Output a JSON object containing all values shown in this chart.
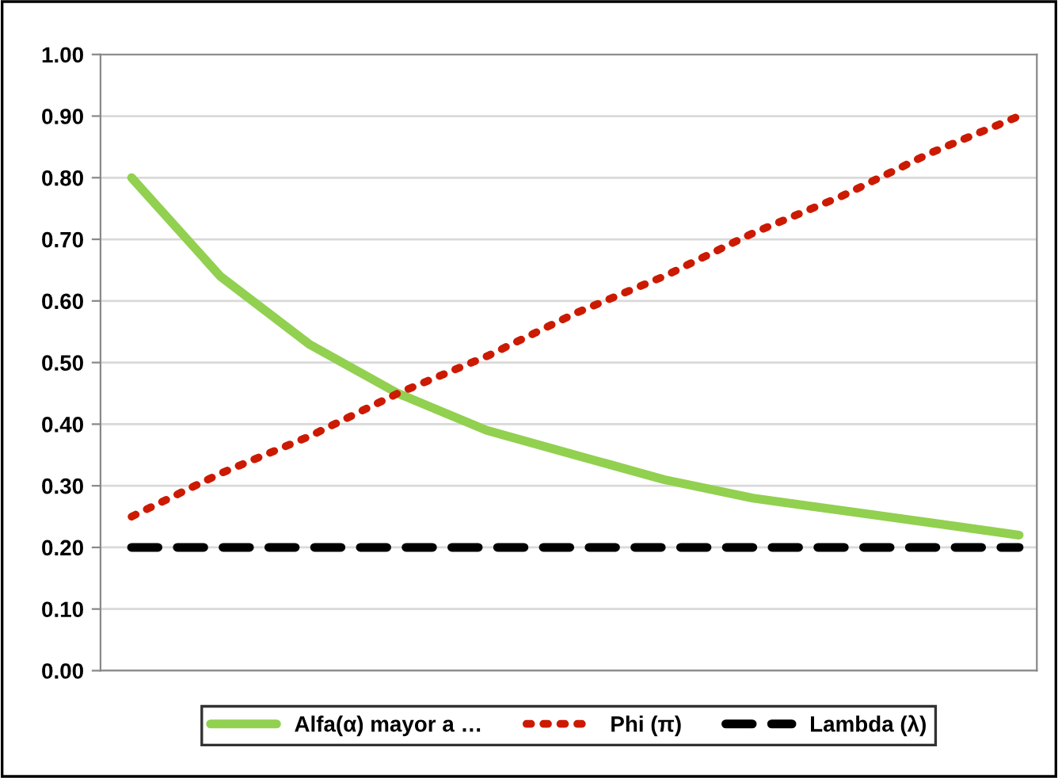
{
  "chart_data": {
    "type": "line",
    "categories": [
      null,
      null,
      null,
      null,
      null,
      null,
      null,
      null,
      null,
      null,
      null
    ],
    "series": [
      {
        "name": "Alfa(α) mayor a …",
        "color": "#92d050",
        "line_style": "solid",
        "values": [
          0.8,
          0.64,
          0.53,
          0.45,
          0.39,
          0.35,
          0.31,
          0.28,
          0.26,
          0.24,
          0.22
        ]
      },
      {
        "name": "Phi (π)",
        "color": "#cc1a00",
        "line_style": "dotted",
        "values": [
          0.25,
          0.32,
          0.38,
          0.45,
          0.51,
          0.58,
          0.64,
          0.71,
          0.77,
          0.84,
          0.9
        ]
      },
      {
        "name": "Lambda (λ)",
        "color": "#000000",
        "line_style": "dashed",
        "values": [
          0.2,
          0.2,
          0.2,
          0.2,
          0.2,
          0.2,
          0.2,
          0.2,
          0.2,
          0.2,
          0.2
        ]
      }
    ],
    "ylim": [
      0,
      1
    ],
    "yticks": [
      {
        "value": 0,
        "label": "0.00"
      },
      {
        "value": 0.1,
        "label": "0.10"
      },
      {
        "value": 0.2,
        "label": "0.20"
      },
      {
        "value": 0.3,
        "label": "0.30"
      },
      {
        "value": 0.4,
        "label": "0.40"
      },
      {
        "value": 0.5,
        "label": "0.50"
      },
      {
        "value": 0.6,
        "label": "0.60"
      },
      {
        "value": 0.7,
        "label": "0.70"
      },
      {
        "value": 0.8,
        "label": "0.80"
      },
      {
        "value": 0.9,
        "label": "0.90"
      },
      {
        "value": 1,
        "label": "1.00"
      }
    ],
    "grid": "y",
    "legend": "bottom",
    "tick_labels": "y"
  }
}
